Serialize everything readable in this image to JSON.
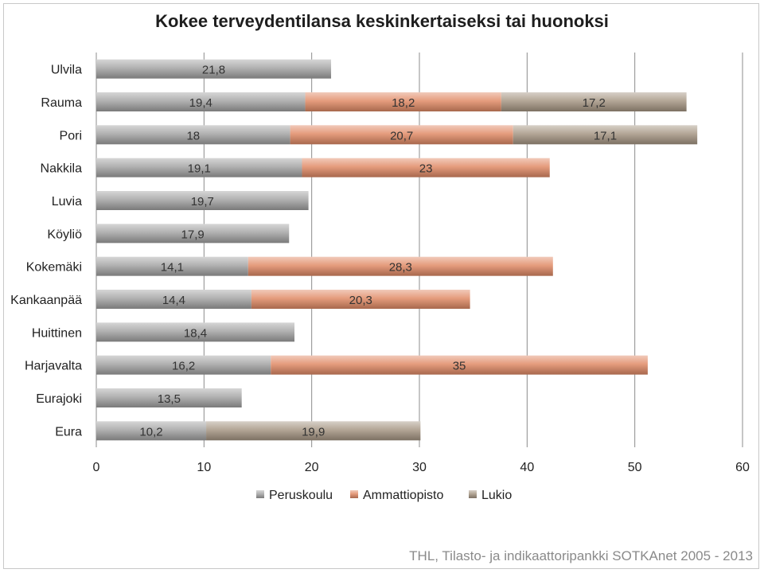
{
  "chart_data": {
    "type": "bar",
    "orientation": "horizontal",
    "stacked": true,
    "title": "Kokee terveydentilansa keskinkertaiseksi tai huonoksi",
    "categories": [
      "Ulvila",
      "Rauma",
      "Pori",
      "Nakkila",
      "Luvia",
      "Köyliö",
      "Kokemäki",
      "Kankaanpää",
      "Huittinen",
      "Harjavalta",
      "Eurajoki",
      "Eura"
    ],
    "series": [
      {
        "name": "Peruskoulu",
        "color": "#a3a3a3",
        "values": [
          21.8,
          19.4,
          18,
          19.1,
          19.7,
          17.9,
          14.1,
          14.4,
          18.4,
          16.2,
          13.5,
          10.2
        ]
      },
      {
        "name": "Ammattiopisto",
        "color": "#e08a66",
        "values": [
          null,
          18.2,
          20.7,
          23,
          null,
          null,
          28.3,
          20.3,
          null,
          35,
          null,
          null
        ]
      },
      {
        "name": "Lukio",
        "color": "#a69684",
        "values": [
          null,
          17.2,
          17.1,
          null,
          null,
          null,
          null,
          null,
          null,
          null,
          null,
          19.9
        ]
      }
    ],
    "data_labels": [
      [
        "21,8",
        "",
        ""
      ],
      [
        "19,4",
        "18,2",
        "17,2"
      ],
      [
        "18",
        "20,7",
        "17,1"
      ],
      [
        "19,1",
        "23",
        ""
      ],
      [
        "19,7",
        "",
        ""
      ],
      [
        "17,9",
        "",
        ""
      ],
      [
        "14,1",
        "28,3",
        ""
      ],
      [
        "14,4",
        "20,3",
        ""
      ],
      [
        "18,4",
        "",
        ""
      ],
      [
        "16,2",
        "35",
        ""
      ],
      [
        "13,5",
        "",
        ""
      ],
      [
        "10,2",
        "",
        "19,9"
      ]
    ],
    "xlim": [
      0,
      60
    ],
    "xticks": [
      "0",
      "10",
      "20",
      "30",
      "40",
      "50",
      "60"
    ],
    "grid": true,
    "legend_position": "bottom"
  },
  "source": "THL, Tilasto- ja indikaattoripankki SOTKAnet 2005 - 2013"
}
